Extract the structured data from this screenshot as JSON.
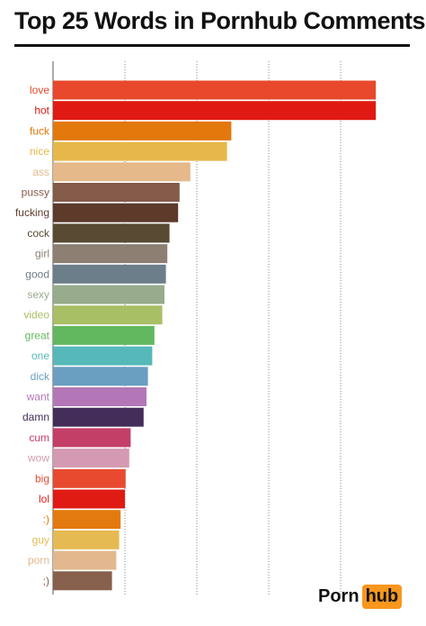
{
  "header": {
    "title": "Top 25 Words in Pornhub Comments"
  },
  "logo": {
    "part1": "Porn",
    "part2": "hub"
  },
  "chart_data": {
    "type": "bar",
    "orientation": "horizontal",
    "title": "Top 25 Words in Pornhub Comments",
    "xlabel": "",
    "ylabel": "",
    "grid": true,
    "xlim": [
      0,
      5
    ],
    "categories": [
      "love",
      "hot",
      "fuck",
      "nice",
      "ass",
      "pussy",
      "fucking",
      "cock",
      "girl",
      "good",
      "sexy",
      "video",
      "great",
      "one",
      "dick",
      "want",
      "damn",
      "cum",
      "wow",
      "big",
      "lol",
      ":)",
      "guy",
      "porn",
      ";)"
    ],
    "values": [
      4.49,
      4.49,
      2.48,
      2.42,
      1.91,
      1.76,
      1.74,
      1.62,
      1.59,
      1.57,
      1.55,
      1.52,
      1.41,
      1.38,
      1.32,
      1.3,
      1.26,
      1.08,
      1.06,
      1.01,
      1.0,
      0.94,
      0.92,
      0.88,
      0.82
    ],
    "colors": [
      "#e8482b",
      "#e01a12",
      "#e3780d",
      "#e6b84a",
      "#e5b98a",
      "#855b4a",
      "#5e3a2b",
      "#584a33",
      "#8d8072",
      "#6b7e8a",
      "#96ac8c",
      "#a8bf66",
      "#62b85f",
      "#56b8b8",
      "#6a9fc2",
      "#b377b8",
      "#432e5a",
      "#c33f68",
      "#d49ab2",
      "#e84a30",
      "#df1b13",
      "#e37a0f",
      "#e5ba52",
      "#e3b88e",
      "#87604d"
    ]
  }
}
